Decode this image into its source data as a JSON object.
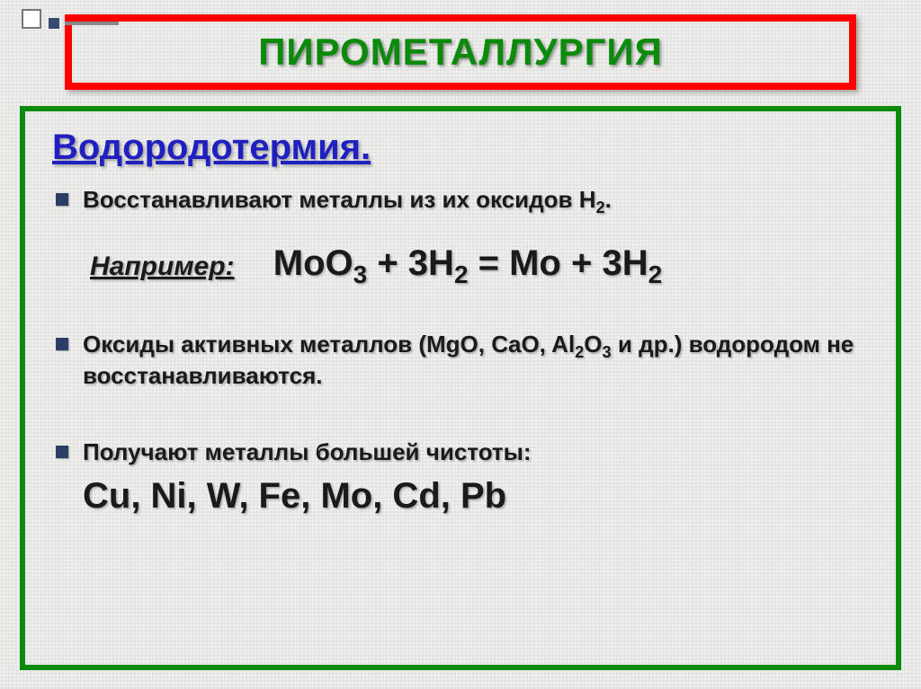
{
  "colors": {
    "title_border": "#ff0000",
    "title_text": "#0b8a0b",
    "content_border": "#0b8a0b",
    "subtitle_text": "#2020c0",
    "body_text": "#1a1a1a"
  },
  "title": "ПИРОМЕТАЛЛУРГИЯ",
  "subtitle": "Водородотермия.",
  "bullet1_pre": "Восстанавливают металлы из их оксидов H",
  "bullet1_sub": "2",
  "bullet1_post": ".",
  "example_label": "Например:",
  "eq_p1": "MoO",
  "eq_s1": "3",
  "eq_p2": " + 3H",
  "eq_s2": "2",
  "eq_p3": " = Mo + 3H",
  "eq_s3": "2",
  "bullet2_pre": "Оксиды активных металлов (MgO, CaO, Al",
  "bullet2_sub1": "2",
  "bullet2_mid": "O",
  "bullet2_sub2": "3",
  "bullet2_post": " и др.) водородом не восстанавливаются.",
  "bullet3_text": "Получают металлы большей чистоты:",
  "bullet3_metals": "Cu, Ni, W, Fe, Mo, Cd, Pb"
}
